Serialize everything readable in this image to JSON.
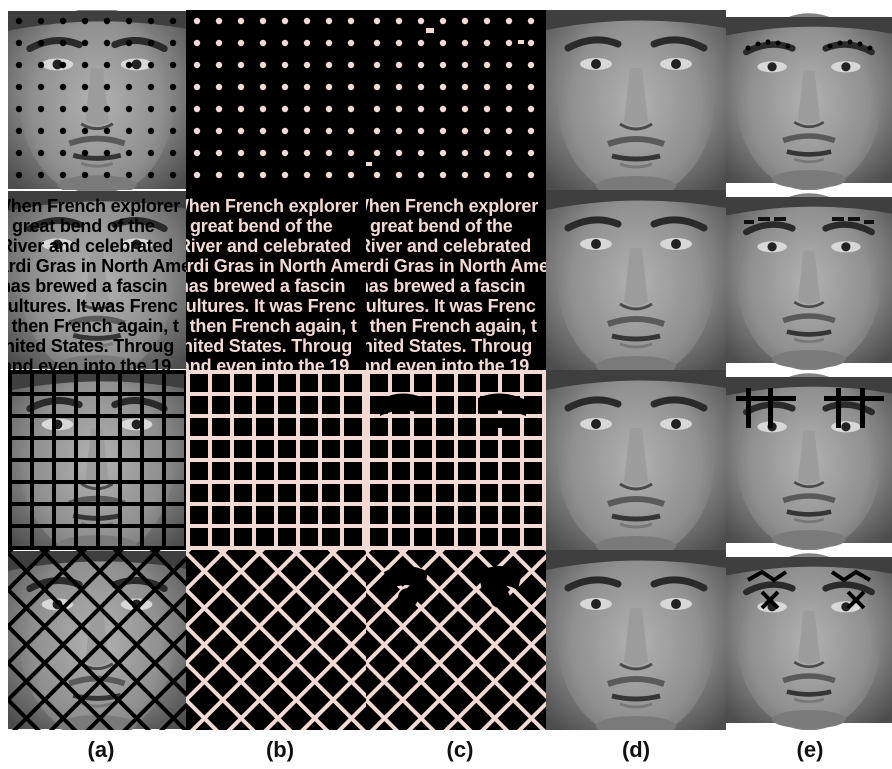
{
  "figure": {
    "column_labels": [
      "(a)",
      "(b)",
      "(c)",
      "(d)",
      "(e)"
    ],
    "text_overlay_lines": [
      "When French explorer",
      "great bend of the",
      "River and celebrated",
      "Mardi Gras in North Ameri",
      "has brewed a fascin",
      "cultures. It was Frenc",
      ", then French again, t",
      "nited States. Throug",
      "and even into the 19"
    ],
    "rows": [
      {
        "mask": "dots"
      },
      {
        "mask": "text"
      },
      {
        "mask": "grid"
      },
      {
        "mask": "diagonal-mesh"
      }
    ],
    "colors": {
      "background": "#ffffff",
      "mask_dark": "#000000",
      "mask_light": "#f2d9d4",
      "face_skin": "#8f8f8f"
    }
  }
}
